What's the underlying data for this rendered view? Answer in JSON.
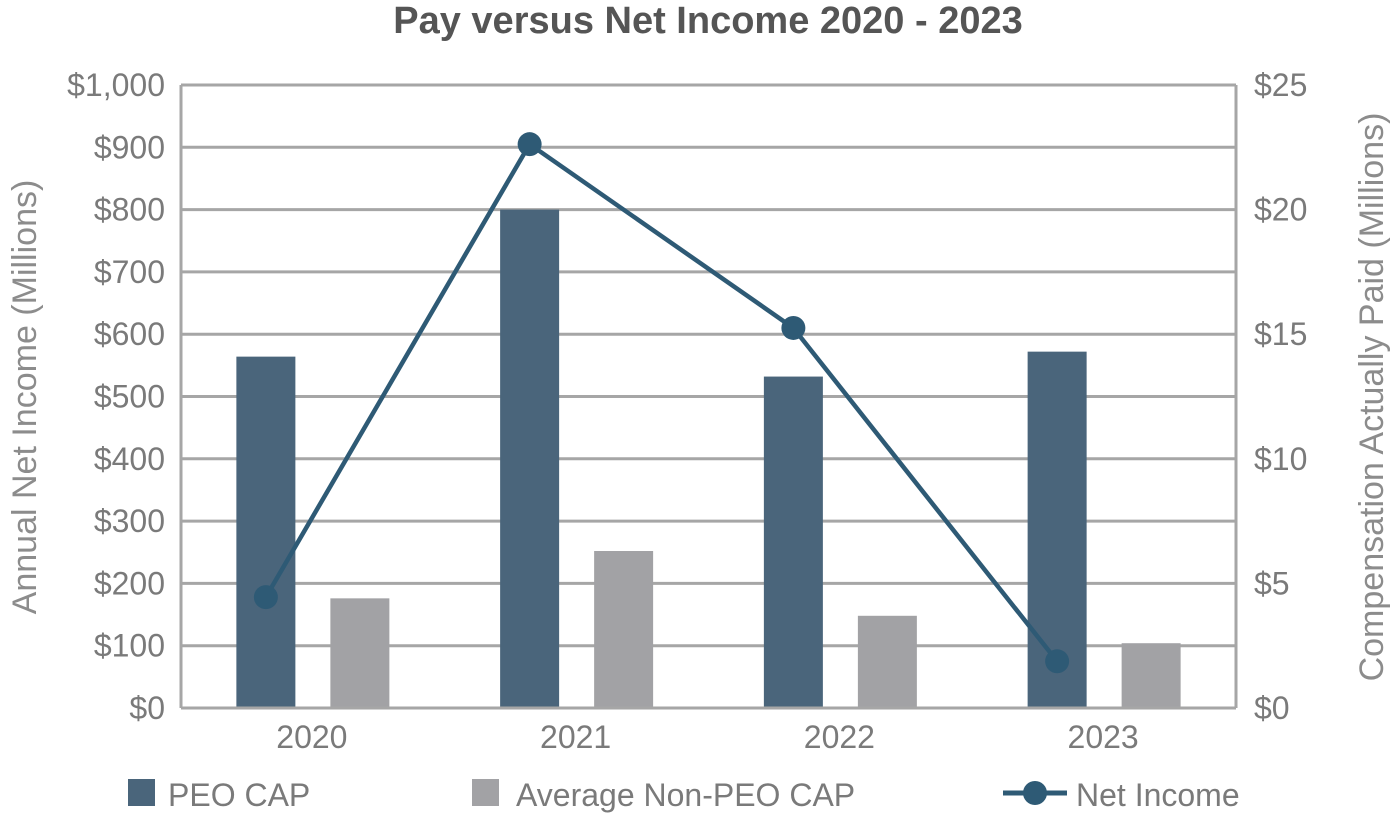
{
  "chart_data": {
    "type": "bar",
    "title": "Pay versus Net Income 2020 - 2023",
    "categories": [
      "2020",
      "2021",
      "2022",
      "2023"
    ],
    "ylabel_left": "Annual Net Income (Millions)",
    "ylabel_right": "Compensation Actually Paid (Millions)",
    "ylim_left": [
      0,
      1000
    ],
    "ylim_right": [
      0,
      25
    ],
    "yticks_left": [
      "$0",
      "$100",
      "$200",
      "$300",
      "$400",
      "$500",
      "$600",
      "$700",
      "$800",
      "$900",
      "$1,000"
    ],
    "yticks_right": [
      "$0",
      "$5",
      "$10",
      "$15",
      "$20",
      "$25"
    ],
    "grid": true,
    "legend_position": "bottom",
    "series": [
      {
        "name": "PEO CAP",
        "type": "bar",
        "axis": "right",
        "color": "#4a657b",
        "values": [
          14.1,
          20.0,
          13.3,
          14.3
        ]
      },
      {
        "name": "Average Non-PEO CAP",
        "type": "bar",
        "axis": "right",
        "color": "#a2a2a5",
        "values": [
          4.4,
          6.3,
          3.7,
          2.6
        ]
      },
      {
        "name": "Net Income",
        "type": "line",
        "axis": "left",
        "color": "#2e5a75",
        "values": [
          178,
          905,
          610,
          75
        ]
      }
    ]
  }
}
